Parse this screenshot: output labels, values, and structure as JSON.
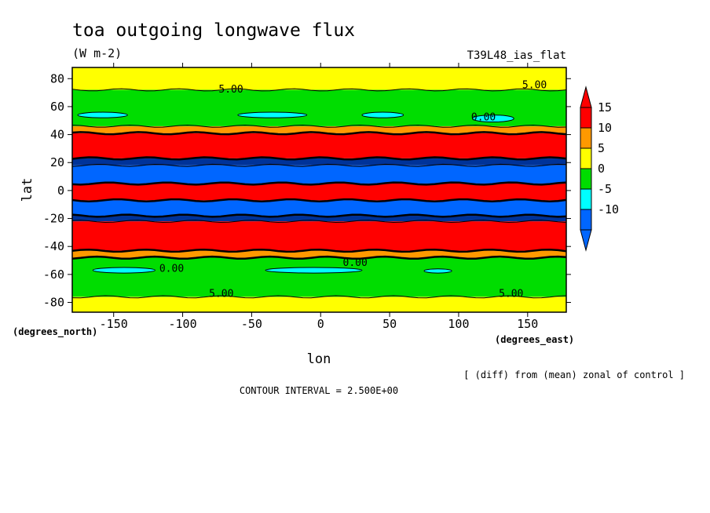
{
  "title": "toa outgoing longwave flux",
  "units": "(W m-2)",
  "run_label": "T39L48_ias_flat",
  "note": "[ (diff) from (mean) zonal of control ]",
  "contour_interval_text": "CONTOUR INTERVAL = 2.500E+00",
  "chart_data": {
    "type": "heatmap",
    "title": "toa outgoing longwave flux",
    "subtitle": "(W m-2)",
    "xlabel": "lon",
    "ylabel": "lat",
    "x_units_label": "(degrees_east)",
    "y_units_label": "(degrees_north)",
    "xlim": [
      -180,
      178
    ],
    "ylim": [
      -87,
      88
    ],
    "x_ticks": [
      -150,
      -100,
      -50,
      0,
      50,
      100,
      150
    ],
    "x_tick_labels": [
      "-150",
      "-100",
      "-50",
      "0",
      "50",
      "100",
      "150"
    ],
    "y_ticks": [
      -80,
      -60,
      -40,
      -20,
      0,
      20,
      40,
      60,
      80
    ],
    "y_tick_labels": [
      "-80",
      "-60",
      "-40",
      "-20",
      "0",
      "20",
      "40",
      "60",
      "80"
    ],
    "contour_interval": 2.5,
    "colorbar": {
      "labels": [
        "15",
        "10",
        "5",
        "0",
        "-5",
        "-10"
      ],
      "levels": [
        15,
        10,
        5,
        0,
        -5,
        -10
      ],
      "colors": [
        "#ff0000",
        "#ff9900",
        "#ffff00",
        "#00dd00",
        "#00ffff",
        "#0066ff"
      ],
      "extend_top_color": "#ff0000",
      "extend_bottom_color": "#0066ff"
    },
    "zonal_bands": [
      {
        "lat_from": -87,
        "lat_to": -76,
        "value": 5,
        "color": "#ffff00"
      },
      {
        "lat_from": -76,
        "lat_to": -48,
        "value": 0,
        "color": "#00dd00"
      },
      {
        "lat_from": -48,
        "lat_to": -43,
        "value": 10,
        "color": "#ff9900"
      },
      {
        "lat_from": -43,
        "lat_to": -22,
        "value": 15,
        "color": "#ff0000"
      },
      {
        "lat_from": -22,
        "lat_to": -18,
        "value": 0,
        "color": "#003399"
      },
      {
        "lat_from": -18,
        "lat_to": -7,
        "value": -10,
        "color": "#0066ff"
      },
      {
        "lat_from": -7,
        "lat_to": 5,
        "value": 15,
        "color": "#ff0000"
      },
      {
        "lat_from": 5,
        "lat_to": 18,
        "value": -10,
        "color": "#0066ff"
      },
      {
        "lat_from": 18,
        "lat_to": 23,
        "value": 0,
        "color": "#003399"
      },
      {
        "lat_from": 23,
        "lat_to": 41,
        "value": 15,
        "color": "#ff0000"
      },
      {
        "lat_from": 41,
        "lat_to": 46,
        "value": 10,
        "color": "#ff9900"
      },
      {
        "lat_from": 46,
        "lat_to": 72,
        "value": 0,
        "color": "#00dd00"
      },
      {
        "lat_from": 72,
        "lat_to": 88,
        "value": 5,
        "color": "#ffff00"
      }
    ],
    "anomaly_patches": [
      {
        "lon_from": -176,
        "lon_to": -140,
        "lat_from": 52,
        "lat_to": 56,
        "value": -2.5,
        "color": "#00ffff"
      },
      {
        "lon_from": -60,
        "lon_to": -10,
        "lat_from": 52,
        "lat_to": 56,
        "value": -2.5,
        "color": "#00ffff"
      },
      {
        "lon_from": 30,
        "lon_to": 60,
        "lat_from": 52,
        "lat_to": 56,
        "value": -2.5,
        "color": "#00ffff"
      },
      {
        "lon_from": 110,
        "lon_to": 140,
        "lat_from": 49,
        "lat_to": 54,
        "value": -2.5,
        "color": "#00ffff"
      },
      {
        "lon_from": -165,
        "lon_to": -120,
        "lat_from": -59,
        "lat_to": -55,
        "value": -2.5,
        "color": "#00ffff"
      },
      {
        "lon_from": -40,
        "lon_to": 30,
        "lat_from": -59,
        "lat_to": -55,
        "value": -2.5,
        "color": "#00ffff"
      },
      {
        "lon_from": 75,
        "lon_to": 95,
        "lat_from": -59,
        "lat_to": -56,
        "value": -2.5,
        "color": "#00ffff"
      }
    ],
    "contour_labels": [
      {
        "text": "5.00",
        "lon": -65,
        "lat": 70
      },
      {
        "text": "5.00",
        "lon": 155,
        "lat": 73
      },
      {
        "text": "0.00",
        "lon": 118,
        "lat": 50
      },
      {
        "text": "5.00",
        "lon": -72,
        "lat": -76
      },
      {
        "text": "5.00",
        "lon": 138,
        "lat": -76
      },
      {
        "text": "0.00",
        "lon": -108,
        "lat": -58
      },
      {
        "text": "0.00",
        "lon": 25,
        "lat": -54
      }
    ]
  }
}
